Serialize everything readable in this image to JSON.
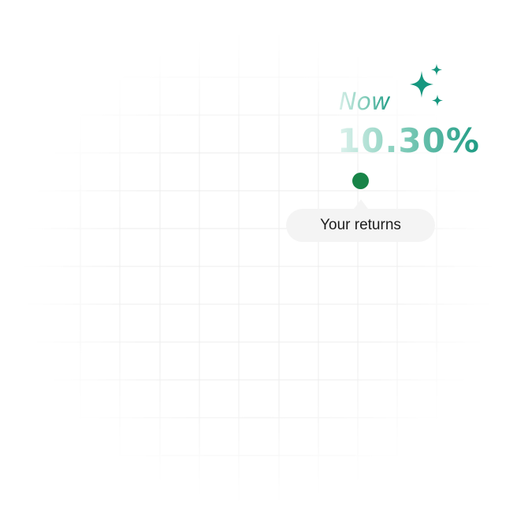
{
  "badge": {
    "prefix": "Now",
    "rate": "10.30%",
    "icon": "sparkles-icon"
  },
  "marker": {
    "label": "Your returns"
  },
  "colors": {
    "accent_start": "#dff3ee",
    "accent_end": "#1d9b83",
    "sparkle": "#16977f",
    "dot": "#188448",
    "pill_bg": "#f4f4f4",
    "grid_line": "#ededed"
  }
}
